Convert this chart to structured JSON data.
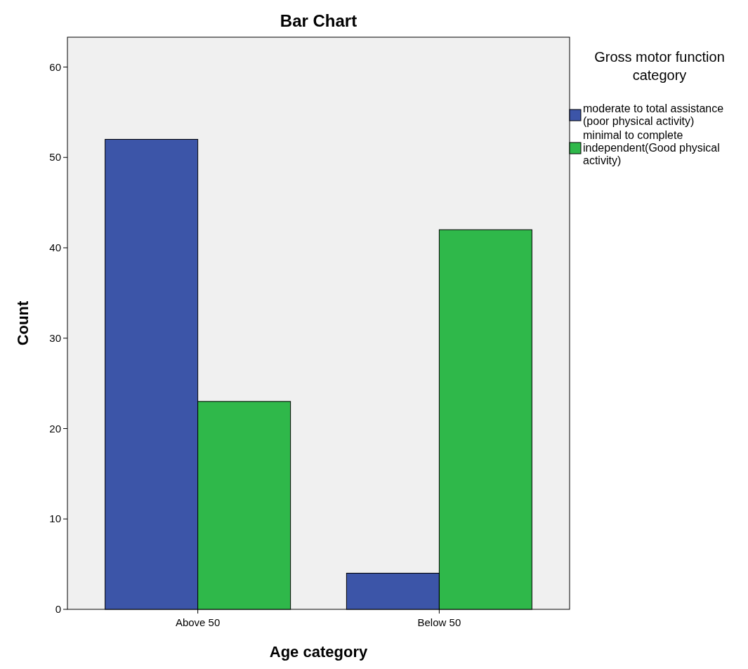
{
  "chart_data": {
    "type": "bar",
    "title": "Bar Chart",
    "xlabel": "Age category",
    "ylabel": "Count",
    "legend_title": "Gross motor function category",
    "categories": [
      "Above 50",
      "Below 50"
    ],
    "series": [
      {
        "name": "moderate to total assistance (poor physical activity)",
        "color": "#3c55a8",
        "values": [
          52,
          4
        ]
      },
      {
        "name": "minimal to complete independent(Good physical activity)",
        "color": "#2fb84a",
        "values": [
          23,
          42
        ]
      }
    ],
    "ylim": [
      0,
      63.3
    ],
    "yticks": [
      0,
      10,
      20,
      30,
      40,
      50,
      60
    ],
    "grid": false,
    "legend": "top right"
  }
}
